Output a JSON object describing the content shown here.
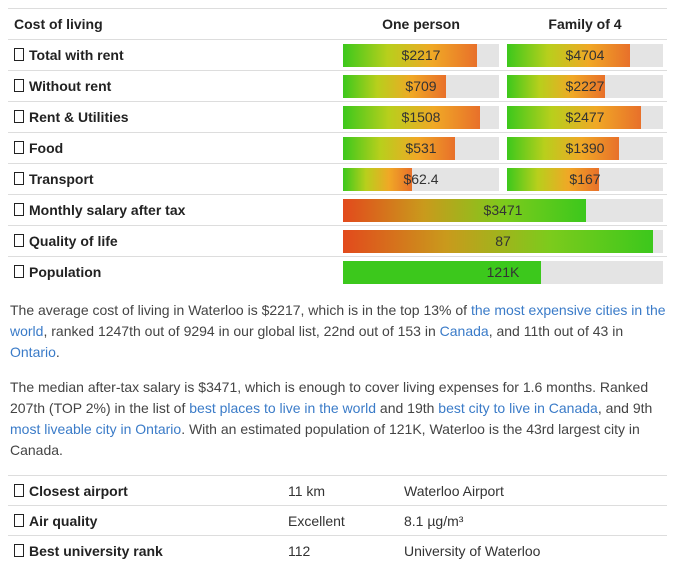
{
  "header": {
    "label": "Cost of living",
    "col1": "One person",
    "col2": "Family of 4"
  },
  "rows": [
    {
      "label": "Total with rent",
      "values": [
        "$2217",
        "$4704"
      ]
    },
    {
      "label": "Without rent",
      "values": [
        "$709",
        "$2227"
      ]
    },
    {
      "label": "Rent & Utilities",
      "values": [
        "$1508",
        "$2477"
      ]
    },
    {
      "label": "Food",
      "values": [
        "$531",
        "$1390"
      ]
    },
    {
      "label": "Transport",
      "values": [
        "$62.4",
        "$167"
      ]
    },
    {
      "label": "Monthly salary after tax",
      "values": [
        "$3471"
      ]
    },
    {
      "label": "Quality of life",
      "values": [
        "87"
      ]
    },
    {
      "label": "Population",
      "values": [
        "121K"
      ]
    }
  ],
  "paragraphs": [
    [
      {
        "text": "The average cost of living in Waterloo is $2217, which is in the top 13% of ",
        "link": false
      },
      {
        "text": "the most expensive cities in the world",
        "link": true
      },
      {
        "text": ", ranked 1247th out of 9294 in our global list, 22nd out of 153 in ",
        "link": false
      },
      {
        "text": "Canada",
        "link": true
      },
      {
        "text": ", and 11th out of 43 in ",
        "link": false
      },
      {
        "text": "Ontario",
        "link": true
      },
      {
        "text": ".",
        "link": false
      }
    ],
    [
      {
        "text": "The median after-tax salary is $3471, which is enough to cover living expenses for 1.6 months. Ranked 207th (TOP 2%) in the list of ",
        "link": false
      },
      {
        "text": "best places to live in the world",
        "link": true
      },
      {
        "text": " and 19th ",
        "link": false
      },
      {
        "text": "best city to live in Canada",
        "link": true
      },
      {
        "text": ", and 9th ",
        "link": false
      },
      {
        "text": "most liveable city in Ontario",
        "link": true
      },
      {
        "text": ". With an estimated population of 121K, Waterloo is the 43rd largest city in Canada.",
        "link": false
      }
    ]
  ],
  "facts": [
    {
      "label": "Closest airport",
      "value": "11 km",
      "detail": "Waterloo Airport"
    },
    {
      "label": "Air quality",
      "value": "Excellent",
      "detail": "8.1 µg/m³"
    },
    {
      "label": "Best university rank",
      "value": "112",
      "detail": "University of Waterloo"
    }
  ]
}
